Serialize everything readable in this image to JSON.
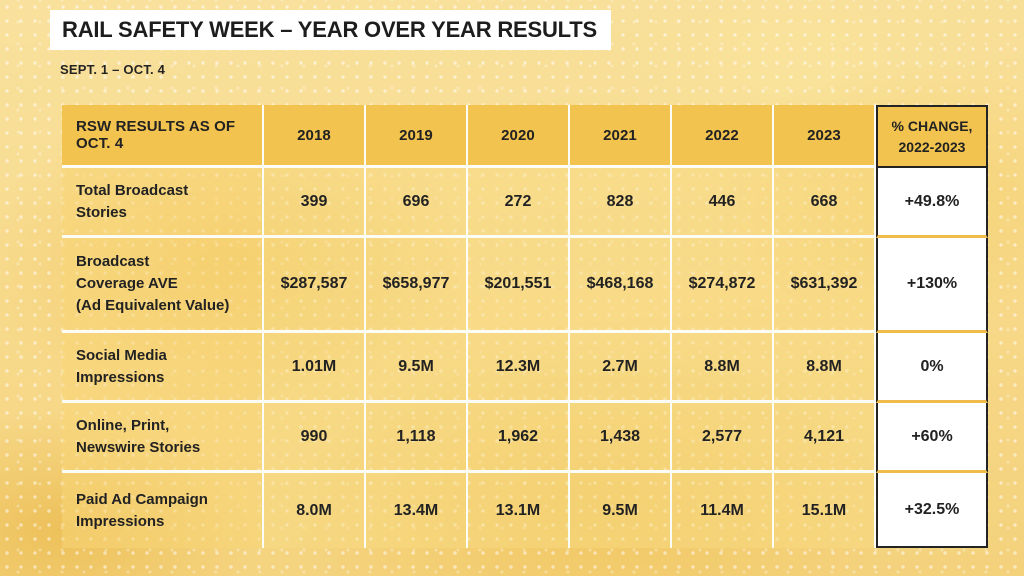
{
  "title": "RAIL SAFETY WEEK – YEAR OVER YEAR RESULTS",
  "subtitle": "SEPT. 1 – OCT. 4",
  "colors": {
    "background_yellow": "#F7D98A",
    "header_gold": "#F2C34E",
    "cell_yellow": "#F8DC8E",
    "grid_line_white": "#FDFDF8",
    "change_column_border": "#232323",
    "change_separator_gold": "#F0BD4C",
    "text_dark": "#222222",
    "title_background": "#FFFFFF"
  },
  "table": {
    "header": [
      "RSW RESULTS AS OF OCT. 4",
      "2018",
      "2019",
      "2020",
      "2021",
      "2022",
      "2023",
      "% CHANGE,\n2022-2023"
    ],
    "rows": [
      {
        "label": "Total Broadcast\nStories",
        "values": [
          "399",
          "696",
          "272",
          "828",
          "446",
          "668"
        ],
        "change": "+49.8%"
      },
      {
        "label": "Broadcast\nCoverage AVE\n(Ad Equivalent Value)",
        "values": [
          "$287,587",
          "$658,977",
          "$201,551",
          "$468,168",
          "$274,872",
          "$631,392"
        ],
        "change": "+130%"
      },
      {
        "label": "Social Media\nImpressions",
        "values": [
          "1.01M",
          "9.5M",
          "12.3M",
          "2.7M",
          "8.8M",
          "8.8M"
        ],
        "change": "0%"
      },
      {
        "label": "Online, Print,\nNewswire Stories",
        "values": [
          "990",
          "1,118",
          "1,962",
          "1,438",
          "2,577",
          "4,121"
        ],
        "change": "+60%"
      },
      {
        "label": "Paid Ad Campaign\nImpressions",
        "values": [
          "8.0M",
          "13.4M",
          "13.1M",
          "9.5M",
          "11.4M",
          "15.1M"
        ],
        "change": "+32.5%"
      }
    ]
  }
}
